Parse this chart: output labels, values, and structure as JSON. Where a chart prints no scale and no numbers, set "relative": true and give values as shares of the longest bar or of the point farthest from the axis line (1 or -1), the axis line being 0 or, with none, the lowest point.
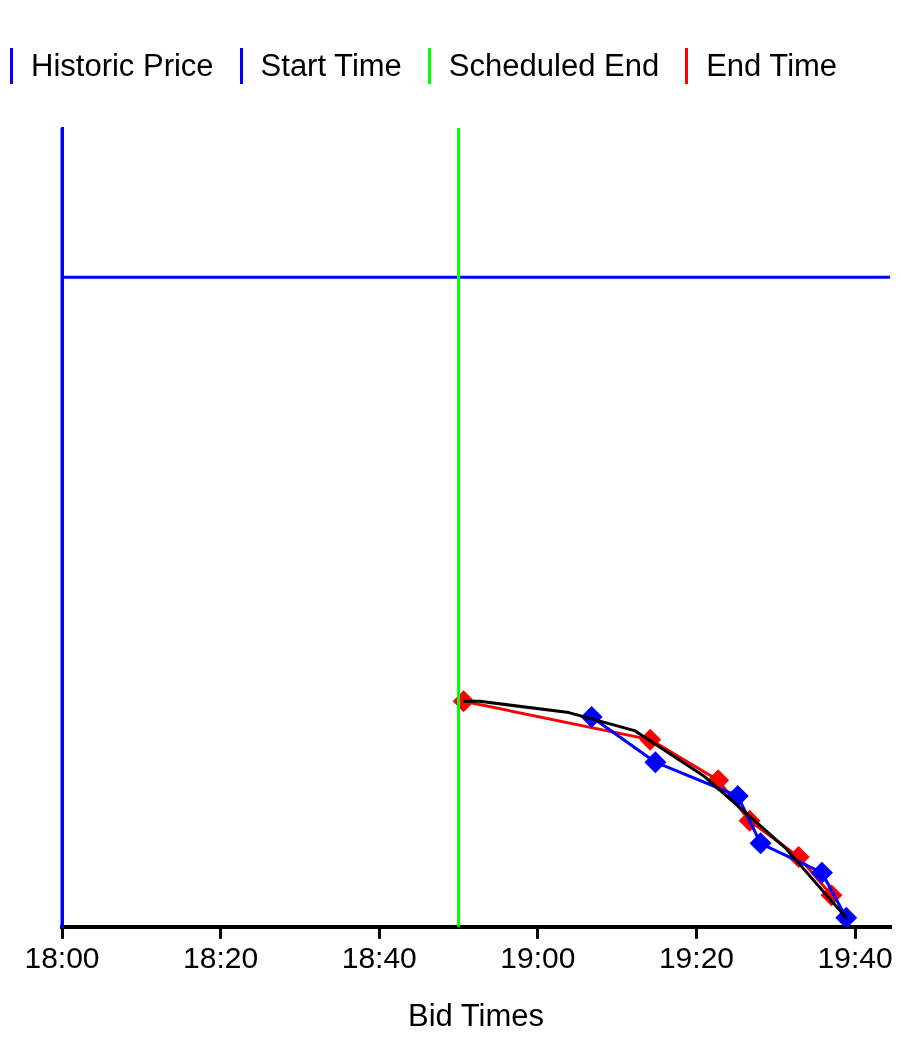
{
  "chart_data": {
    "type": "line",
    "xlabel": "Bid Times",
    "relative": true,
    "xlim": [
      18,
      19.74
    ],
    "xticks": [
      {
        "value": 18,
        "label": "18:00"
      },
      {
        "value": 18.3333,
        "label": "18:20"
      },
      {
        "value": 18.6667,
        "label": "18:40"
      },
      {
        "value": 19,
        "label": "19:00"
      },
      {
        "value": 19.3333,
        "label": "19:20"
      },
      {
        "value": 19.6667,
        "label": "19:40"
      }
    ],
    "grid": false,
    "legend": "top",
    "line_style": "solid",
    "series": [
      {
        "marker": "none",
        "color": "#000000",
        "x": [
          18.844,
          18.878,
          19.065,
          19.203,
          19.348,
          19.52,
          19.648
        ],
        "values": [
          1,
          1,
          0.95,
          0.87,
          0.67,
          0.35,
          0.04
        ]
      },
      {
        "marker": "diamond",
        "color": "#0000ff",
        "x": [
          19.113,
          19.247,
          19.42,
          19.468,
          19.597,
          19.648
        ],
        "values": [
          0.93,
          0.73,
          0.58,
          0.37,
          0.24,
          0.04
        ]
      },
      {
        "marker": "diamond",
        "color": "#ff0000",
        "x": [
          18.844,
          19.236,
          19.379,
          19.445,
          19.548,
          19.617
        ],
        "values": [
          1,
          0.83,
          0.65,
          0.47,
          0.31,
          0.14
        ]
      },
      {
        "marker": "none",
        "name": "End Time",
        "color": "#ff0000"
      }
    ],
    "ref_lines": [
      {
        "axis": "y",
        "value": 2.88,
        "label": "Historic Price",
        "color": "#0000ff"
      },
      {
        "axis": "x",
        "value": 18,
        "label": "Start Time",
        "color": "#0000ff"
      },
      {
        "axis": "x",
        "value": 18.8333,
        "label": "Scheduled End",
        "color": "#00ff00"
      }
    ]
  }
}
